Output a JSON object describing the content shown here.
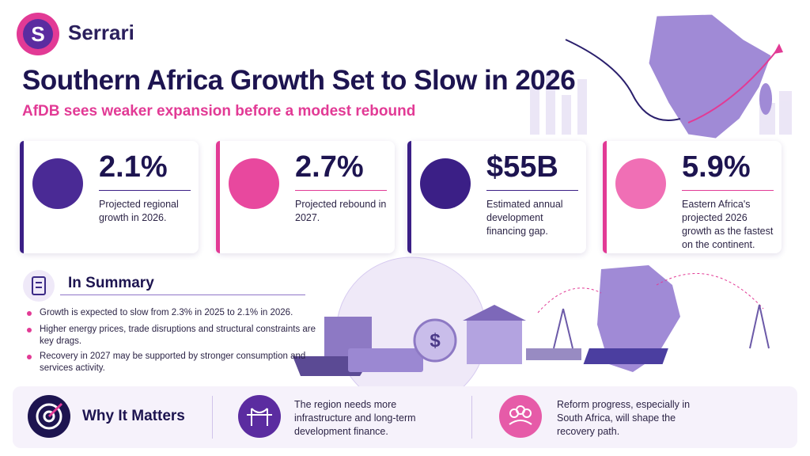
{
  "header": {
    "brand": "Serrari",
    "title": "Southern Africa Growth Set to Slow in 2026",
    "subtitle": "AfDB sees weaker expansion before a modest rebound"
  },
  "stats": [
    {
      "value": "2.1%",
      "label": "Projected regional growth in 2026."
    },
    {
      "value": "2.7%",
      "label": "Projected rebound in 2027."
    },
    {
      "value": "$55B",
      "label": "Estimated annual development financing gap."
    },
    {
      "value": "5.9%",
      "label": "Eastern Africa's projected 2026 growth as the fastest on the continent."
    }
  ],
  "summary": {
    "title": "In Summary",
    "items": [
      "Growth is expected to slow from 2.3% in 2025 to 2.1% in 2026.",
      "Higher energy prices, trade disruptions and structural constraints are key drags.",
      "Recovery in 2027 may be supported by stronger consumption and services activity."
    ]
  },
  "why_it_matters": {
    "title": "Why It Matters",
    "items": [
      "The region needs more infrastructure and long-term development finance.",
      "Reform progress, especially in South Africa, will shape the recovery path."
    ]
  }
}
